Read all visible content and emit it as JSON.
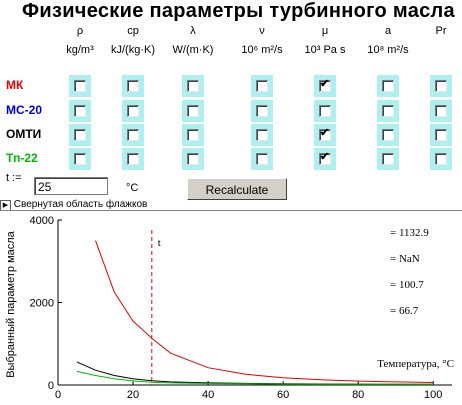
{
  "title": "Физические параметры турбинного масла",
  "columns": [
    {
      "symbol": "ρ",
      "unit": "kg/m³"
    },
    {
      "symbol": "cp",
      "unit": "kJ/(kg·K)"
    },
    {
      "symbol": "λ",
      "unit": "W/(m·K)"
    },
    {
      "symbol": "ν",
      "unit": "10⁶ m²/s"
    },
    {
      "symbol": "μ",
      "unit": "10³ Pa s"
    },
    {
      "symbol": "a",
      "unit": "10⁸ m²/s"
    },
    {
      "symbol": "Pr",
      "unit": ""
    }
  ],
  "rows": [
    {
      "label": "МК",
      "color": "#e00000",
      "checked": [
        false,
        false,
        false,
        false,
        true,
        false,
        false
      ]
    },
    {
      "label": "МС-20",
      "color": "#0000d0",
      "checked": [
        false,
        false,
        false,
        false,
        false,
        false,
        false
      ]
    },
    {
      "label": "ОМТИ",
      "color": "#000000",
      "checked": [
        false,
        false,
        false,
        false,
        true,
        false,
        false
      ]
    },
    {
      "label": "Тп-22",
      "color": "#00bb00",
      "checked": [
        false,
        false,
        false,
        false,
        true,
        false,
        false
      ]
    }
  ],
  "temp_label": "t :=",
  "temp_value": "25",
  "temp_unit": "°C",
  "recalc_label": "Recalculate",
  "collapse_label": "Свернутая область флажков",
  "collapse_arrow": "▶",
  "check_glyph": "✔",
  "chart_data": {
    "type": "line",
    "xlabel": "Температура, °C",
    "ylabel": "Выбранный параметр масла",
    "xlim": [
      0,
      105
    ],
    "ylim": [
      0,
      4000
    ],
    "xticks": [
      "0",
      "20",
      "40",
      "60",
      "80",
      "100"
    ],
    "yticks": [
      "0",
      "2000",
      "4000"
    ],
    "marker": {
      "x": 25,
      "label": "t"
    },
    "readouts": [
      "= 1132.9",
      "= NaN",
      "= 100.7",
      "= 66.7"
    ],
    "series": [
      {
        "color": "#e00000",
        "x": [
          10,
          15,
          20,
          25,
          30,
          40,
          50,
          60,
          70,
          80,
          90,
          100
        ],
        "y": [
          3500,
          2250,
          1550,
          1133,
          770,
          420,
          260,
          175,
          125,
          95,
          75,
          60
        ]
      },
      {
        "color": "#000000",
        "x": [
          5,
          10,
          15,
          20,
          25,
          30,
          40,
          50,
          60,
          70,
          80,
          90,
          100
        ],
        "y": [
          560,
          360,
          230,
          150,
          101,
          75,
          50,
          38,
          30,
          25,
          21,
          18,
          16
        ]
      },
      {
        "color": "#00bb00",
        "x": [
          5,
          10,
          15,
          20,
          25,
          30,
          40,
          50,
          60,
          70,
          80,
          90,
          100
        ],
        "y": [
          330,
          230,
          150,
          100,
          67,
          50,
          36,
          28,
          23,
          20,
          18,
          16,
          15
        ]
      }
    ]
  }
}
